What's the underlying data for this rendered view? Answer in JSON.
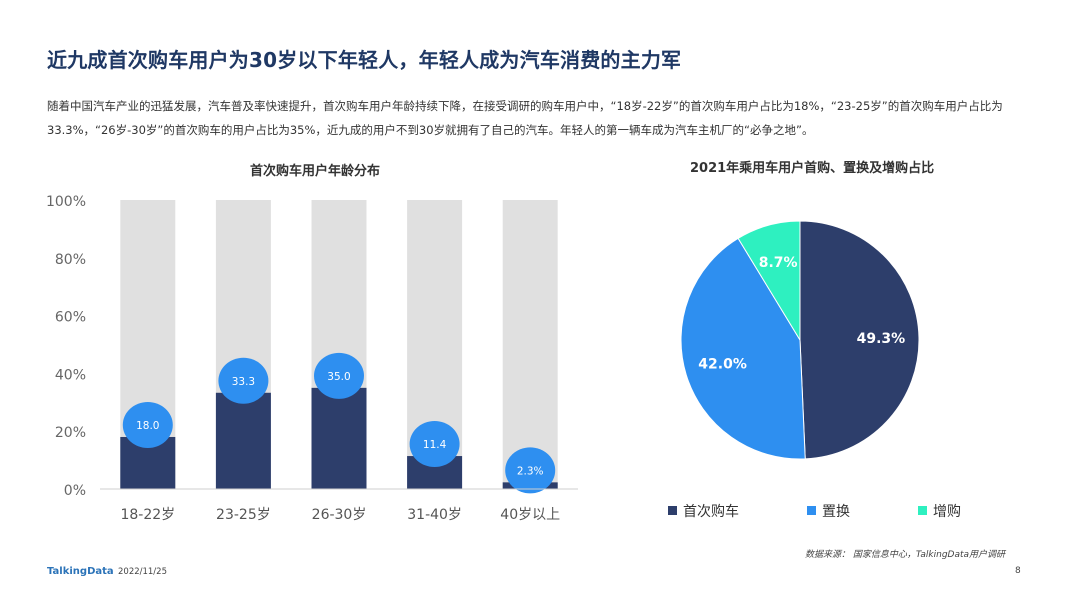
{
  "header": {
    "title": "近九成首次购车用户为30岁以下年轻人，年轻人成为汽车消费的主力军",
    "description": "随着中国汽车产业的迅猛发展，汽车普及率快速提升，首次购车用户年龄持续下降，在接受调研的购车用户中，“18岁-22岁”的首次购车用户占比为18%，“23-25岁”的首次购车用户占比为33.3%，“26岁-30岁”的首次购车的用户占比为35%，近九成的用户不到30岁就拥有了自己的汽车。年轻人的第一辆车成为汽车主机厂的“必争之地”。"
  },
  "chart_data": [
    {
      "type": "bar",
      "title": "首次购车用户年龄分布",
      "categories": [
        "18-22岁",
        "23-25岁",
        "26-30岁",
        "31-40岁",
        "40岁以上"
      ],
      "values": [
        18.0,
        33.3,
        35.0,
        11.4,
        2.3
      ],
      "data_labels": [
        "18.0",
        "33.3",
        "35.0",
        "11.4",
        "2.3%"
      ],
      "ylim": [
        0,
        100
      ],
      "yticks": [
        "0%",
        "20%",
        "40%",
        "60%",
        "80%",
        "100%"
      ],
      "bar_color": "#2d3e6b",
      "background_bar_color": "#e0e0e0",
      "label_bubble_color": "#2e8ff0"
    },
    {
      "type": "pie",
      "title": "2021年乘用车用户首购、置换及增购占比",
      "series": [
        {
          "name": "首次购车",
          "value": 49.3,
          "label": "49.3%",
          "color": "#2d3e6b"
        },
        {
          "name": "置换",
          "value": 42.0,
          "label": "42.0%",
          "color": "#2e8ff0"
        },
        {
          "name": "增购",
          "value": 8.7,
          "label": "8.7%",
          "color": "#2ef0c0"
        }
      ],
      "legend_position": "bottom"
    }
  ],
  "footer": {
    "source": "数据来源： 国家信息中心，TalkingData用户调研",
    "logo": "TalkingData",
    "date": "2022/11/25",
    "page": "8"
  }
}
